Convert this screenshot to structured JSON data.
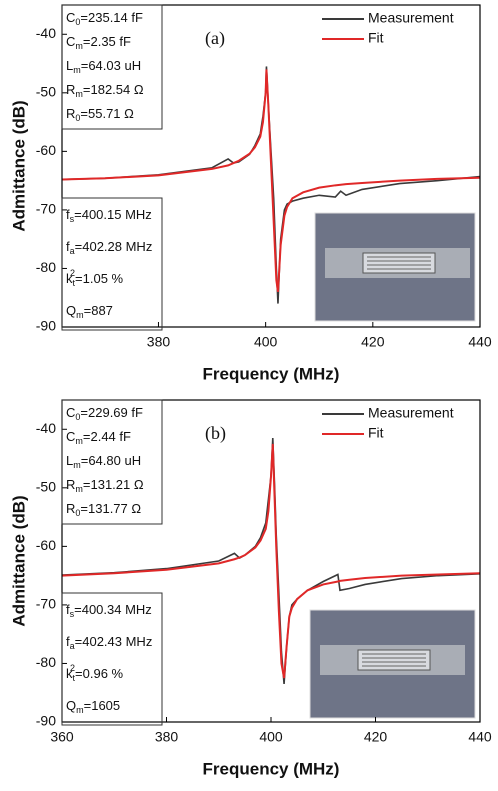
{
  "chart_data": [
    {
      "type": "line",
      "panel_label": "(a)",
      "x_label": "Frequency (MHz)",
      "y_label": "Admittance (dB)",
      "xlim": [
        362,
        440
      ],
      "xticks": [
        380,
        400,
        420,
        440
      ],
      "ylim": [
        -90,
        -35
      ],
      "yticks": [
        -90,
        -80,
        -70,
        -60,
        -50,
        -40
      ],
      "legend": "top-right",
      "x": [
        362,
        370,
        380,
        390,
        393,
        394,
        395,
        397,
        398,
        399,
        399.5,
        400,
        400.15,
        400.5,
        401,
        401.5,
        402,
        402.3,
        402.8,
        403.5,
        404,
        405,
        407,
        410,
        413,
        414,
        415,
        418,
        425,
        432,
        440
      ],
      "series": [
        {
          "name": "Measurement",
          "color": "#3a3a3a",
          "values": [
            -64.8,
            -64.6,
            -64.0,
            -62.8,
            -61.3,
            -62.0,
            -61.8,
            -60.5,
            -59.0,
            -57,
            -54,
            -50,
            -45.5,
            -52,
            -60,
            -68,
            -80,
            -86,
            -75,
            -70,
            -69,
            -68.5,
            -68,
            -67.5,
            -67.8,
            -66.8,
            -67.5,
            -66.5,
            -65.5,
            -65,
            -64.3
          ]
        },
        {
          "name": "Fit",
          "color": "#e02828",
          "values": [
            -64.8,
            -64.6,
            -64.1,
            -63.0,
            -62.4,
            -62.0,
            -61.6,
            -60.4,
            -59.3,
            -57.5,
            -55,
            -50,
            -46,
            -52,
            -62,
            -72,
            -82,
            -84,
            -76,
            -71,
            -69.5,
            -68,
            -67,
            -66.2,
            -65.8,
            -65.7,
            -65.6,
            -65.4,
            -65,
            -64.7,
            -64.5
          ]
        }
      ],
      "params_top": [
        {
          "sym": "C",
          "sub": "0",
          "val": "=235.14 fF"
        },
        {
          "sym": "C",
          "sub": "m",
          "val": "=2.35 fF"
        },
        {
          "sym": "L",
          "sub": "m",
          "val": "=64.03 uH"
        },
        {
          "sym": "R",
          "sub": "m",
          "val": "=182.54 Ω"
        },
        {
          "sym": "R",
          "sub": "0",
          "val": "=55.71 Ω"
        }
      ],
      "params_bottom": [
        {
          "sym": "f",
          "sub": "s",
          "val": "=400.15 MHz"
        },
        {
          "sym": "f",
          "sub": "a",
          "val": "=402.28 MHz"
        },
        {
          "sym": "k",
          "sub": "t",
          "sup": "2",
          "val": "=1.05 %"
        },
        {
          "sym": "Q",
          "sub": "m",
          "val": "=887"
        }
      ]
    },
    {
      "type": "line",
      "panel_label": "(b)",
      "x_label": "Frequency (MHz)",
      "y_label": "Admittance (dB)",
      "xlim": [
        360,
        440
      ],
      "xticks": [
        360,
        380,
        400,
        420,
        440
      ],
      "ylim": [
        -90,
        -35
      ],
      "yticks": [
        -90,
        -80,
        -70,
        -60,
        -50,
        -40
      ],
      "legend": "top-right",
      "x": [
        360,
        370,
        380,
        390,
        393,
        394,
        395,
        397,
        398,
        399,
        399.5,
        400,
        400.34,
        400.7,
        401,
        401.5,
        402,
        402.5,
        403,
        403.5,
        404,
        405,
        407,
        410,
        412.8,
        413.2,
        415,
        418,
        425,
        432,
        440
      ],
      "series": [
        {
          "name": "Measurement",
          "color": "#3a3a3a",
          "values": [
            -64.9,
            -64.5,
            -63.8,
            -62.5,
            -61.2,
            -62.0,
            -61.5,
            -60.0,
            -58.5,
            -56,
            -52,
            -48,
            -41.5,
            -50,
            -58,
            -68,
            -78,
            -83.5,
            -77,
            -72,
            -70,
            -69,
            -67.5,
            -66,
            -64.8,
            -67.5,
            -67.2,
            -66.5,
            -65.5,
            -65,
            -64.7
          ]
        },
        {
          "name": "Fit",
          "color": "#e02828",
          "values": [
            -65,
            -64.6,
            -64.0,
            -62.9,
            -62.2,
            -61.9,
            -61.5,
            -60.2,
            -59.0,
            -57,
            -54,
            -48,
            -42.5,
            -52,
            -60,
            -71,
            -80,
            -82.5,
            -77,
            -72,
            -70.5,
            -69,
            -67.5,
            -66.5,
            -66,
            -65.9,
            -65.7,
            -65.4,
            -65,
            -64.8,
            -64.6
          ]
        }
      ],
      "params_top": [
        {
          "sym": "C",
          "sub": "0",
          "val": "=229.69 fF"
        },
        {
          "sym": "C",
          "sub": "m",
          "val": "=2.44 fF"
        },
        {
          "sym": "L",
          "sub": "m",
          "val": "=64.80 uH"
        },
        {
          "sym": "R",
          "sub": "m",
          "val": "=131.21 Ω"
        },
        {
          "sym": "R",
          "sub": "0",
          "val": "=131.77 Ω"
        }
      ],
      "params_bottom": [
        {
          "sym": "f",
          "sub": "s",
          "val": "=400.34 MHz"
        },
        {
          "sym": "f",
          "sub": "a",
          "val": "=402.43 MHz"
        },
        {
          "sym": "k",
          "sub": "t",
          "sup": "2",
          "val": "=0.96 %"
        },
        {
          "sym": "Q",
          "sub": "m",
          "val": "=1605"
        }
      ]
    }
  ]
}
